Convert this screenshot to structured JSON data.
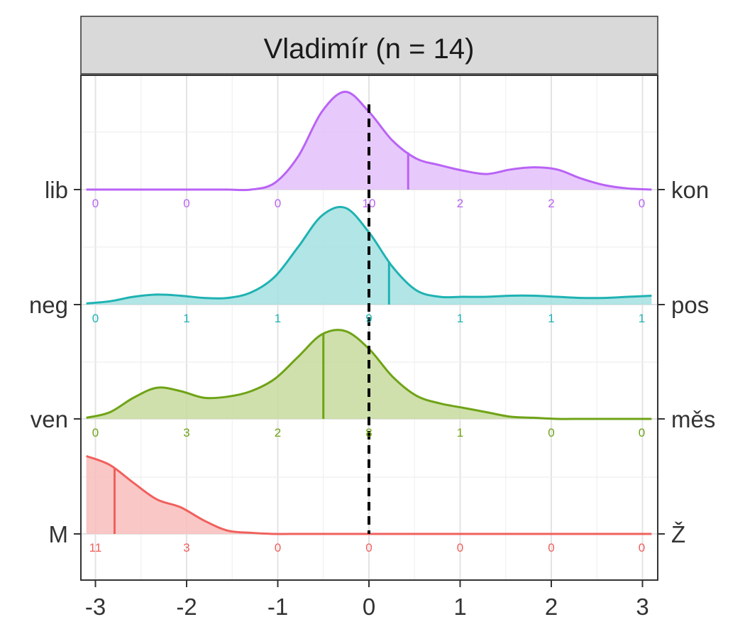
{
  "chart_data": {
    "type": "ridgeline",
    "title": "Vladimír (n = 14)",
    "xlim": [
      -3,
      3
    ],
    "x_ticks": [
      "-3",
      "-2",
      "-1",
      "0",
      "1",
      "2",
      "3"
    ],
    "reference_line_x": 0,
    "grid": true,
    "series": [
      {
        "left_label": "M",
        "right_label": "Ž",
        "color": "#F0605D",
        "fill": "#F8BDBC",
        "mean": -2.79,
        "counts": [
          "11",
          "3",
          "0",
          "0",
          "0",
          "0",
          "0"
        ],
        "density": [
          0.7,
          0.62,
          0.46,
          0.31,
          0.24,
          0.12,
          0.03,
          0.01,
          0.0,
          0.0,
          0.0,
          0.0,
          0.0,
          0.0,
          0.0,
          0.0,
          0.0,
          0.0,
          0.0,
          0.0,
          0.0,
          0.0,
          0.0,
          0.0,
          0.0
        ]
      },
      {
        "left_label": "ven",
        "right_label": "měs",
        "color": "#6FA316",
        "fill": "#C7DB9D",
        "mean": -0.5,
        "counts": [
          "0",
          "3",
          "2",
          "8",
          "1",
          "0",
          "0"
        ],
        "density": [
          0.01,
          0.06,
          0.19,
          0.28,
          0.25,
          0.19,
          0.2,
          0.25,
          0.36,
          0.56,
          0.76,
          0.79,
          0.63,
          0.38,
          0.21,
          0.14,
          0.1,
          0.06,
          0.02,
          0.01,
          0.0,
          0.0,
          0.0,
          0.0,
          0.0
        ]
      },
      {
        "left_label": "neg",
        "right_label": "pos",
        "color": "#1FB2B3",
        "fill": "#A5E1E1",
        "mean": 0.22,
        "counts": [
          "0",
          "1",
          "1",
          "9",
          "1",
          "1",
          "1"
        ],
        "density": [
          0.01,
          0.03,
          0.07,
          0.09,
          0.08,
          0.06,
          0.06,
          0.11,
          0.25,
          0.52,
          0.8,
          0.87,
          0.65,
          0.34,
          0.13,
          0.07,
          0.07,
          0.07,
          0.08,
          0.08,
          0.07,
          0.06,
          0.06,
          0.07,
          0.08
        ]
      },
      {
        "left_label": "lib",
        "right_label": "kon",
        "color": "#B963F5",
        "fill": "#E4C0FB",
        "mean": 0.43,
        "counts": [
          "0",
          "0",
          "0",
          "10",
          "2",
          "2",
          "0"
        ],
        "density": [
          0.0,
          0.0,
          0.0,
          0.0,
          0.0,
          0.0,
          0.0,
          0.0,
          0.06,
          0.3,
          0.7,
          0.88,
          0.7,
          0.44,
          0.28,
          0.22,
          0.17,
          0.14,
          0.18,
          0.2,
          0.18,
          0.1,
          0.04,
          0.01,
          0.0
        ]
      }
    ]
  }
}
